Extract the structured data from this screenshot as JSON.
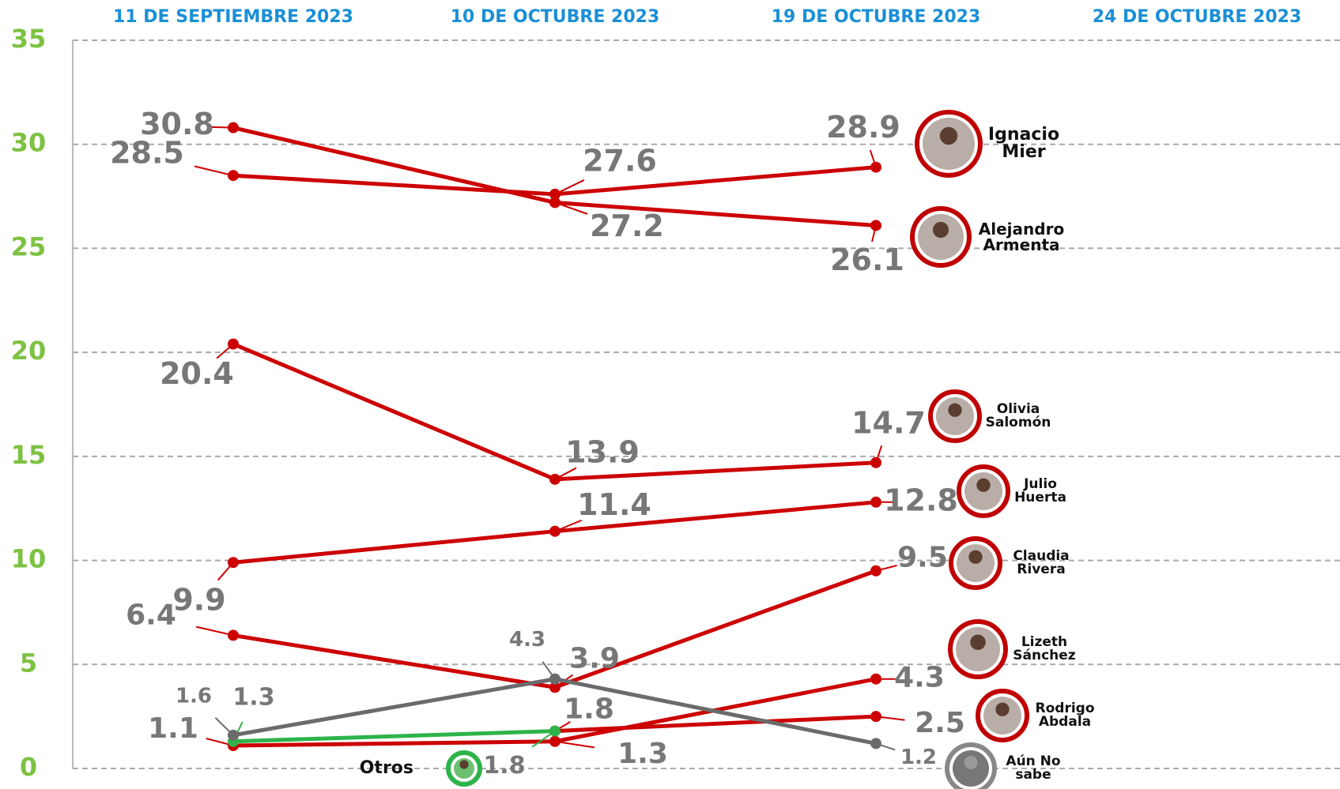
{
  "chart_data": {
    "type": "line",
    "categories": [
      "11 DE SEPTIEMBRE 2023",
      "10 DE OCTUBRE 2023",
      "19 DE OCTUBRE 2023",
      "24 DE OCTUBRE 2023"
    ],
    "ylim": [
      0,
      35
    ],
    "yticks": [
      0,
      5,
      10,
      15,
      20,
      25,
      30,
      35
    ],
    "grid": true,
    "series": [
      {
        "name": "Ignacio Mier",
        "color": "#cc0000",
        "values": [
          28.5,
          27.6,
          28.9,
          null
        ]
      },
      {
        "name": "Alejandro Armenta",
        "color": "#cc0000",
        "values": [
          30.8,
          27.2,
          26.1,
          null
        ]
      },
      {
        "name": "Olivia Salomón",
        "color": "#cc0000",
        "values": [
          20.4,
          13.9,
          14.7,
          null
        ]
      },
      {
        "name": "Julio Huerta",
        "color": "#cc0000",
        "values": [
          9.9,
          11.4,
          12.8,
          null
        ]
      },
      {
        "name": "Claudia Rivera",
        "color": "#cc0000",
        "values": [
          6.4,
          3.9,
          9.5,
          null
        ]
      },
      {
        "name": "Lizeth Sánchez",
        "color": "#cc0000",
        "values": [
          1.1,
          1.3,
          4.3,
          null
        ]
      },
      {
        "name": "Rodrigo Abdala",
        "color": "#cc0000",
        "values": [
          null,
          1.8,
          2.5,
          null
        ]
      },
      {
        "name": "Otros",
        "color": "#2db34a",
        "values": [
          1.3,
          1.8,
          null,
          null
        ]
      },
      {
        "name": "Aún No sabe",
        "color": "#6b6b6b",
        "values": [
          1.6,
          4.3,
          1.2,
          null
        ]
      }
    ]
  }
}
